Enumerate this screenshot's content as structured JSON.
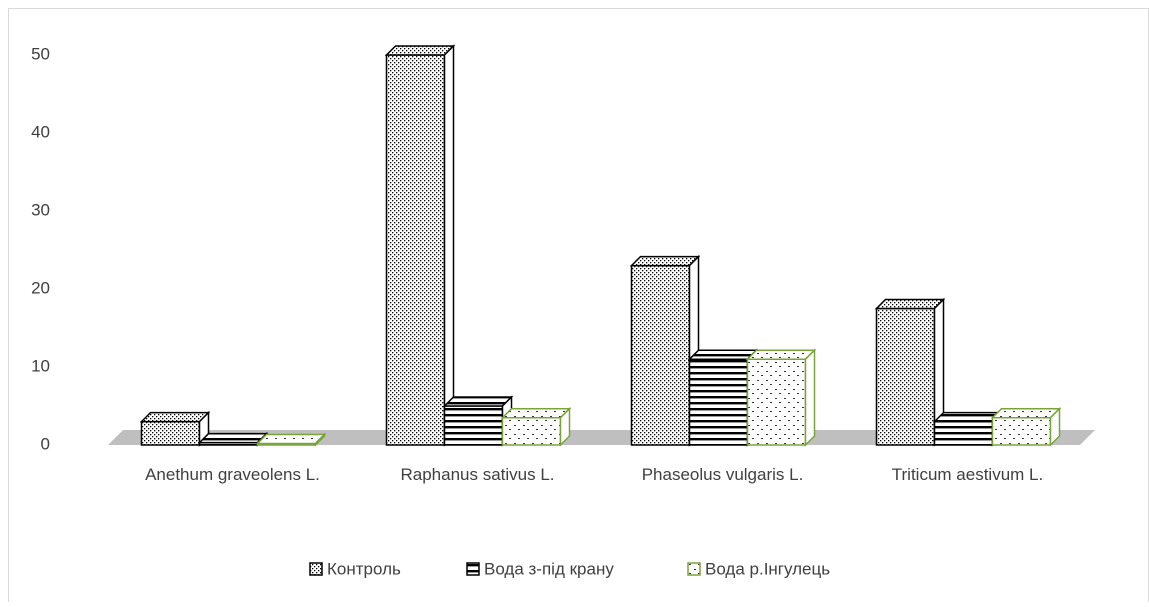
{
  "chart_data": {
    "type": "bar3d",
    "categories": [
      "Anethum graveolens L.",
      "Raphanus sativus L.",
      "Phaseolus vulgaris L.",
      "Triticum aestivum L."
    ],
    "series": [
      {
        "name": "Контроль",
        "color": "#000000",
        "values": [
          3,
          50,
          23,
          17.5
        ]
      },
      {
        "name": "Вода з-під крану",
        "color": "#000000",
        "values": [
          0.3,
          5,
          11,
          3
        ]
      },
      {
        "name": "Вода р.Інгулець",
        "color": "#7aa33a",
        "values": [
          0.2,
          3.5,
          11,
          3.5
        ]
      }
    ],
    "ylim": [
      0,
      50
    ],
    "yticks": [
      0,
      10,
      20,
      30,
      40,
      50
    ],
    "grid": false,
    "legend": "bottom"
  }
}
